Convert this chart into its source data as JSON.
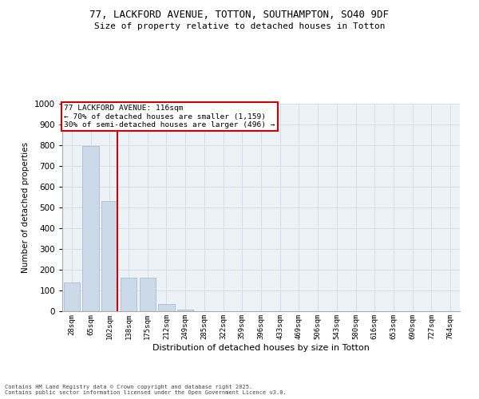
{
  "title_line1": "77, LACKFORD AVENUE, TOTTON, SOUTHAMPTON, SO40 9DF",
  "title_line2": "Size of property relative to detached houses in Totton",
  "xlabel": "Distribution of detached houses by size in Totton",
  "ylabel": "Number of detached properties",
  "categories": [
    "28sqm",
    "65sqm",
    "102sqm",
    "138sqm",
    "175sqm",
    "212sqm",
    "249sqm",
    "285sqm",
    "322sqm",
    "359sqm",
    "396sqm",
    "433sqm",
    "469sqm",
    "506sqm",
    "543sqm",
    "580sqm",
    "616sqm",
    "653sqm",
    "690sqm",
    "727sqm",
    "764sqm"
  ],
  "values": [
    137,
    796,
    530,
    163,
    163,
    35,
    8,
    0,
    0,
    0,
    0,
    0,
    0,
    0,
    0,
    0,
    0,
    0,
    0,
    0,
    0
  ],
  "bar_color": "#ccd9e8",
  "bar_edgecolor": "#aabcce",
  "grid_color": "#d4dde8",
  "background_color": "#edf2f7",
  "property_label": "77 LACKFORD AVENUE: 116sqm",
  "annotation_line1": "← 70% of detached houses are smaller (1,159)",
  "annotation_line2": "30% of semi-detached houses are larger (496) →",
  "vline_color": "#cc0000",
  "annotation_box_edgecolor": "#cc0000",
  "ylim": [
    0,
    1000
  ],
  "yticks": [
    0,
    100,
    200,
    300,
    400,
    500,
    600,
    700,
    800,
    900,
    1000
  ],
  "footer_line1": "Contains HM Land Registry data © Crown copyright and database right 2025.",
  "footer_line2": "Contains public sector information licensed under the Open Government Licence v3.0."
}
